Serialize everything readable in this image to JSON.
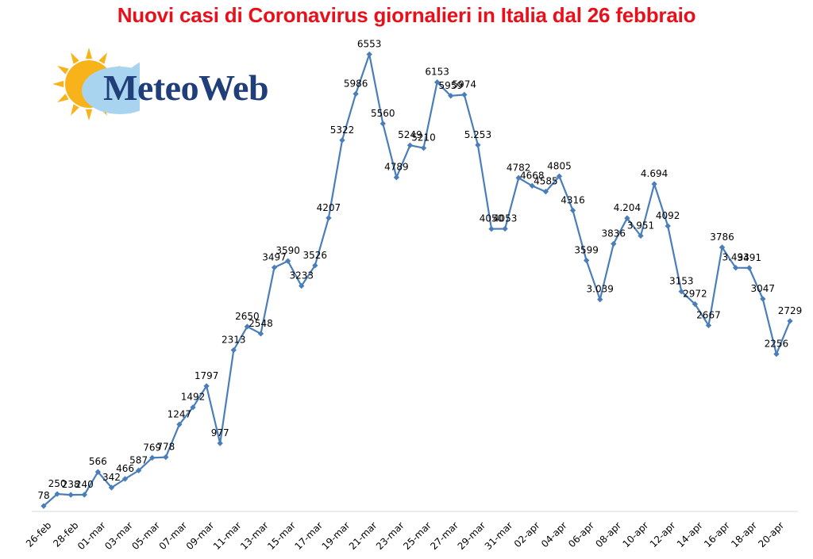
{
  "colors": {
    "title": "#e8101a",
    "line": "#4a7ebb",
    "logo_text": "#1f3e7a",
    "sun": "#f7b319",
    "cloud": "#a9d4f0"
  },
  "logo": {
    "text": "MeteoWeb"
  },
  "chart_data": {
    "type": "line",
    "title": "Nuovi casi di Coronavirus giornalieri in Italia dal 26 febbraio",
    "xlabel": "",
    "ylabel": "",
    "ylim": [
      0,
      6900
    ],
    "grid": false,
    "legend": "none",
    "x": [
      "26-feb",
      "27-feb",
      "28-feb",
      "29-feb",
      "01-mar",
      "02-mar",
      "03-mar",
      "04-mar",
      "05-mar",
      "06-mar",
      "07-mar",
      "08-mar",
      "09-mar",
      "10-mar",
      "11-mar",
      "12-mar",
      "13-mar",
      "14-mar",
      "15-mar",
      "16-mar",
      "17-mar",
      "18-mar",
      "19-mar",
      "20-mar",
      "21-mar",
      "22-mar",
      "23-mar",
      "24-mar",
      "25-mar",
      "26-mar",
      "27-mar",
      "28-mar",
      "29-mar",
      "30-mar",
      "31-mar",
      "01-apr",
      "02-apr",
      "03-apr",
      "04-apr",
      "05-apr",
      "06-apr",
      "07-apr",
      "08-apr",
      "09-apr",
      "10-apr",
      "11-apr",
      "12-apr",
      "13-apr",
      "14-apr",
      "15-apr",
      "16-apr",
      "17-apr",
      "18-apr",
      "19-apr",
      "20-apr",
      "21-apr"
    ],
    "tick_labels": [
      "26-feb",
      "28-feb",
      "01-mar",
      "03-mar",
      "05-mar",
      "07-mar",
      "09-mar",
      "11-mar",
      "13-mar",
      "15-mar",
      "17-mar",
      "19-mar",
      "21-mar",
      "23-mar",
      "25-mar",
      "27-mar",
      "29-mar",
      "31-mar",
      "02-apr",
      "04-apr",
      "06-apr",
      "08-apr",
      "10-apr",
      "12-apr",
      "14-apr",
      "16-apr",
      "18-apr",
      "20-apr"
    ],
    "values": [
      78,
      250,
      238,
      240,
      566,
      342,
      466,
      587,
      769,
      778,
      1247,
      1492,
      1797,
      977,
      2313,
      2650,
      2548,
      3497,
      3590,
      3233,
      3526,
      4207,
      5322,
      5986,
      6553,
      5560,
      4789,
      5249,
      5210,
      6153,
      5959,
      5974,
      5253,
      4050,
      4053,
      4782,
      4668,
      4585,
      4805,
      4316,
      3599,
      3039,
      3836,
      4204,
      3951,
      4694,
      4092,
      3153,
      2972,
      2667,
      3786,
      3493,
      3491,
      3047,
      2256,
      2729
    ],
    "data_labels": [
      "78",
      "250",
      "238",
      "240",
      "566",
      "342",
      "466",
      "587",
      "769",
      "778",
      "1247",
      "1492",
      "1797",
      "977",
      "2313",
      "2650",
      "2548",
      "3497",
      "3590",
      "3233",
      "3526",
      "4207",
      "5322",
      "5986",
      "6553",
      "5560",
      "4789",
      "5249",
      "5210",
      "6153",
      "5959",
      "5974",
      "5.253",
      "4050",
      "4053",
      "4782",
      "4668",
      "4585",
      "4805",
      "4316",
      "3599",
      "3.039",
      "3836",
      "4.204",
      "3.951",
      "4.694",
      "4092",
      "3153",
      "2972",
      "2667",
      "3786",
      "3.493",
      "3491",
      "3047",
      "2256",
      "2729"
    ]
  }
}
